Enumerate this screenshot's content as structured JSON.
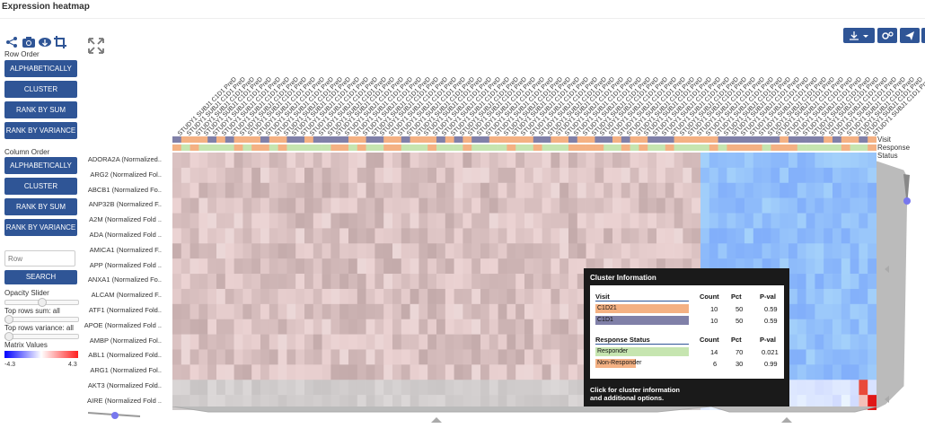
{
  "title": "Expression heatmap",
  "left_panel": {
    "row_order_label": "Row Order",
    "row_buttons": [
      "ALPHABETICALLY",
      "CLUSTER",
      "RANK BY SUM",
      "RANK BY VARIANCE"
    ],
    "column_order_label": "Column Order",
    "column_buttons": [
      "ALPHABETICALLY",
      "CLUSTER",
      "RANK BY SUM",
      "RANK BY VARIANCE"
    ],
    "search_placeholder": "Row",
    "search_button": "SEARCH",
    "opacity_label": "Opacity Slider",
    "top_sum_label": "Top rows sum: all",
    "top_var_label": "Top rows variance: all",
    "matrix_label": "Matrix Values",
    "matrix_min": "-4.3",
    "matrix_max": "4.3",
    "icons": [
      "share-icon",
      "camera-icon",
      "cloud-download-icon",
      "crop-icon"
    ]
  },
  "row_labels": [
    "ADORA2A (Normalized..",
    "ARG2 (Normalized Fol..",
    "ABCB1 (Normalized Fo..",
    "ANP32B (Normalized F..",
    "A2M (Normalized Fold ..",
    "ADA (Normalized Fold ..",
    "AMICA1 (Normalized F..",
    "APP (Normalized Fold ..",
    "ANXA1 (Normalized Fo..",
    "ALCAM (Normalized F..",
    "ATF1 (Normalized Fold..",
    "APOE (Normalized Fold ..",
    "AMBP (Normalized Fol..",
    "ABL1 (Normalized Fold..",
    "ARG1 (Normalized Fol..",
    "AKT3 (Normalized Fold..",
    "AIRE (Normalized Fold .."
  ],
  "column_label_text": "STUDY1 SUBJ1 C1D1 PreD",
  "annotations": {
    "visit_label": "Visit",
    "response_label": "Response Status",
    "visit_colors": {
      "C1D21": "#f4b183",
      "C1D1": "#8080a8"
    },
    "response_colors": {
      "Responder": "#c6e5b0",
      "Non-Responder": "#f4b183"
    }
  },
  "toolbar_right": [
    "download-icon",
    "settings-icon",
    "send-icon"
  ],
  "tooltip": {
    "title": "Cluster Information",
    "visit_header": "Visit",
    "count_header": "Count",
    "pct_header": "Pct",
    "pval_header": "P-val",
    "visit_rows": [
      {
        "name": "C1D21",
        "count": "10",
        "pct": "50",
        "pval": "0.59",
        "color": "#f4b183"
      },
      {
        "name": "C1D1",
        "count": "10",
        "pct": "50",
        "pval": "0.59",
        "color": "#8080a8"
      }
    ],
    "response_header": "Response Status",
    "response_rows": [
      {
        "name": "Responder",
        "count": "14",
        "pct": "70",
        "pval": "0.021",
        "color": "#c6e5b0"
      },
      {
        "name": "Non-Responder",
        "count": "6",
        "pct": "30",
        "pval": "0.99",
        "color": "#f4b183"
      }
    ],
    "footer_line1": "Click for cluster information",
    "footer_line2": "and additional options."
  }
}
